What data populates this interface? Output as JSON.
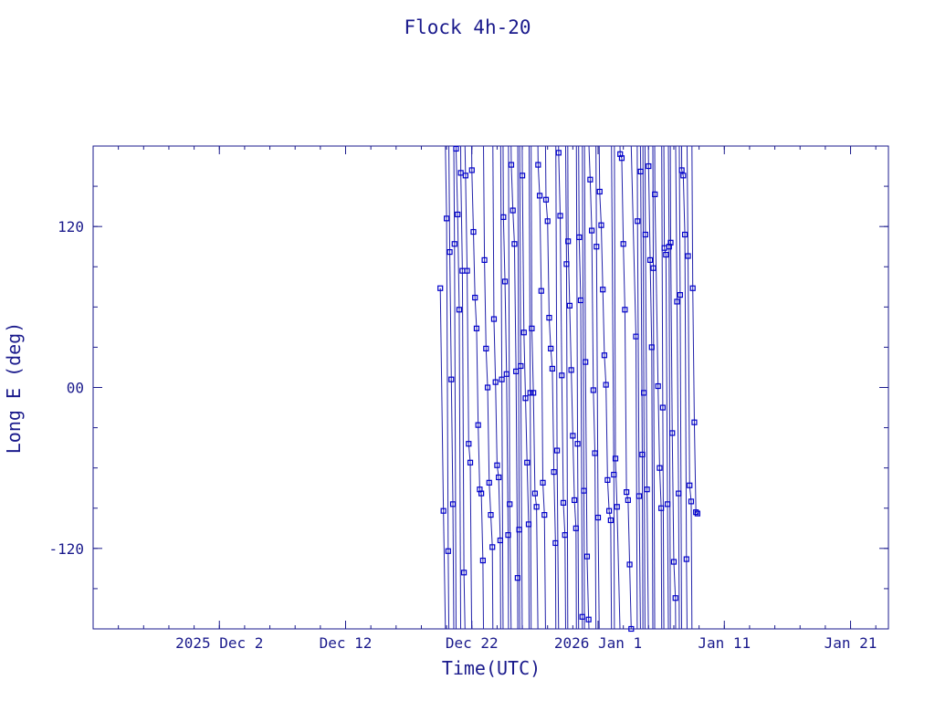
{
  "chart_data": {
    "type": "scatter",
    "title": "Flock 4h-20",
    "xlabel": "Time(UTC)",
    "ylabel": "Long E (deg)",
    "xlim": [
      "2025-11-22",
      "2026-01-24"
    ],
    "ylim": [
      -180,
      180
    ],
    "x_ticks": [
      {
        "date": "2025-12-02",
        "label": "2025 Dec  2"
      },
      {
        "date": "2025-12-12",
        "label": "Dec 12"
      },
      {
        "date": "2025-12-22",
        "label": "Dec 22"
      },
      {
        "date": "2026-01-01",
        "label": "2026 Jan  1"
      },
      {
        "date": "2026-01-11",
        "label": "Jan 11"
      },
      {
        "date": "2026-01-21",
        "label": "Jan 21"
      }
    ],
    "y_ticks": [
      {
        "value": 120,
        "label": "120"
      },
      {
        "value": 0,
        "label": "00"
      },
      {
        "value": -120,
        "label": "-120"
      }
    ],
    "series": [
      {
        "marker": "square",
        "color": "#0000cc",
        "points": [
          {
            "x": "2025-12-19T12:00",
            "y": 74
          },
          {
            "x": "2025-12-19T18:00",
            "y": -92
          },
          {
            "x": "2025-12-20T00:00",
            "y": 126
          },
          {
            "x": "2025-12-20T03:00",
            "y": -122
          },
          {
            "x": "2025-12-20T06:00",
            "y": 101
          },
          {
            "x": "2025-12-20T09:00",
            "y": 6
          },
          {
            "x": "2025-12-20T12:00",
            "y": -87
          },
          {
            "x": "2025-12-20T15:00",
            "y": 107
          },
          {
            "x": "2025-12-20T18:00",
            "y": 178
          },
          {
            "x": "2025-12-20T21:00",
            "y": 129
          },
          {
            "x": "2025-12-21T00:00",
            "y": 58
          },
          {
            "x": "2025-12-21T03:00",
            "y": 160
          },
          {
            "x": "2025-12-21T06:00",
            "y": 87
          },
          {
            "x": "2025-12-21T09:00",
            "y": -138
          },
          {
            "x": "2025-12-21T12:00",
            "y": 158
          },
          {
            "x": "2025-12-21T15:00",
            "y": 87
          },
          {
            "x": "2025-12-21T18:00",
            "y": -42
          },
          {
            "x": "2025-12-21T21:00",
            "y": -56
          },
          {
            "x": "2025-12-22T00:00",
            "y": 162
          },
          {
            "x": "2025-12-22T03:00",
            "y": 116
          },
          {
            "x": "2025-12-22T06:00",
            "y": 67
          },
          {
            "x": "2025-12-22T09:00",
            "y": 44
          },
          {
            "x": "2025-12-22T12:00",
            "y": -28
          },
          {
            "x": "2025-12-22T15:00",
            "y": -76
          },
          {
            "x": "2025-12-22T18:00",
            "y": -79
          },
          {
            "x": "2025-12-22T21:00",
            "y": -129
          },
          {
            "x": "2025-12-23T00:00",
            "y": 95
          },
          {
            "x": "2025-12-23T03:00",
            "y": 29
          },
          {
            "x": "2025-12-23T06:00",
            "y": 0
          },
          {
            "x": "2025-12-23T09:00",
            "y": -71
          },
          {
            "x": "2025-12-23T12:00",
            "y": -95
          },
          {
            "x": "2025-12-23T15:00",
            "y": -119
          },
          {
            "x": "2025-12-23T18:00",
            "y": 51
          },
          {
            "x": "2025-12-23T21:00",
            "y": 4
          },
          {
            "x": "2025-12-24T00:00",
            "y": -58
          },
          {
            "x": "2025-12-24T03:00",
            "y": -67
          },
          {
            "x": "2025-12-24T06:00",
            "y": -114
          },
          {
            "x": "2025-12-24T09:00",
            "y": 6
          },
          {
            "x": "2025-12-24T12:00",
            "y": 127
          },
          {
            "x": "2025-12-24T15:00",
            "y": 79
          },
          {
            "x": "2025-12-24T18:00",
            "y": 10
          },
          {
            "x": "2025-12-24T21:00",
            "y": -110
          },
          {
            "x": "2025-12-25T00:00",
            "y": -87
          },
          {
            "x": "2025-12-25T03:00",
            "y": 166
          },
          {
            "x": "2025-12-25T06:00",
            "y": 132
          },
          {
            "x": "2025-12-25T09:00",
            "y": 107
          },
          {
            "x": "2025-12-25T12:00",
            "y": 12
          },
          {
            "x": "2025-12-25T15:00",
            "y": -142
          },
          {
            "x": "2025-12-25T18:00",
            "y": -106
          },
          {
            "x": "2025-12-25T21:00",
            "y": 16
          },
          {
            "x": "2025-12-26T00:00",
            "y": 158
          },
          {
            "x": "2025-12-26T03:00",
            "y": 41
          },
          {
            "x": "2025-12-26T06:00",
            "y": -8
          },
          {
            "x": "2025-12-26T09:00",
            "y": -56
          },
          {
            "x": "2025-12-26T12:00",
            "y": -102
          },
          {
            "x": "2025-12-26T15:00",
            "y": -4
          },
          {
            "x": "2025-12-26T18:00",
            "y": 44
          },
          {
            "x": "2025-12-26T21:00",
            "y": -4
          },
          {
            "x": "2025-12-27T00:00",
            "y": -79
          },
          {
            "x": "2025-12-27T03:00",
            "y": -89
          },
          {
            "x": "2025-12-27T06:00",
            "y": 166
          },
          {
            "x": "2025-12-27T09:00",
            "y": 143
          },
          {
            "x": "2025-12-27T12:00",
            "y": 72
          },
          {
            "x": "2025-12-27T15:00",
            "y": -71
          },
          {
            "x": "2025-12-27T18:00",
            "y": -95
          },
          {
            "x": "2025-12-27T21:00",
            "y": 140
          },
          {
            "x": "2025-12-28T00:00",
            "y": 124
          },
          {
            "x": "2025-12-28T03:00",
            "y": 52
          },
          {
            "x": "2025-12-28T06:00",
            "y": 29
          },
          {
            "x": "2025-12-28T09:00",
            "y": 14
          },
          {
            "x": "2025-12-28T12:00",
            "y": -63
          },
          {
            "x": "2025-12-28T15:00",
            "y": -116
          },
          {
            "x": "2025-12-28T18:00",
            "y": -47
          },
          {
            "x": "2025-12-28T21:00",
            "y": 175
          },
          {
            "x": "2025-12-29T00:00",
            "y": 128
          },
          {
            "x": "2025-12-29T03:00",
            "y": 9
          },
          {
            "x": "2025-12-29T06:00",
            "y": -86
          },
          {
            "x": "2025-12-29T09:00",
            "y": -110
          },
          {
            "x": "2025-12-29T12:00",
            "y": 92
          },
          {
            "x": "2025-12-29T15:00",
            "y": 109
          },
          {
            "x": "2025-12-29T18:00",
            "y": 61
          },
          {
            "x": "2025-12-29T21:00",
            "y": 13
          },
          {
            "x": "2025-12-30T00:00",
            "y": -36
          },
          {
            "x": "2025-12-30T03:00",
            "y": -84
          },
          {
            "x": "2025-12-30T06:00",
            "y": -105
          },
          {
            "x": "2025-12-30T09:00",
            "y": -42
          },
          {
            "x": "2025-12-30T12:00",
            "y": 112
          },
          {
            "x": "2025-12-30T15:00",
            "y": 65
          },
          {
            "x": "2025-12-30T18:00",
            "y": -171
          },
          {
            "x": "2025-12-30T21:00",
            "y": -77
          },
          {
            "x": "2025-12-31T00:00",
            "y": 19
          },
          {
            "x": "2025-12-31T03:00",
            "y": -126
          },
          {
            "x": "2025-12-31T06:00",
            "y": -173
          },
          {
            "x": "2025-12-31T09:00",
            "y": 155
          },
          {
            "x": "2025-12-31T12:00",
            "y": 117
          },
          {
            "x": "2025-12-31T15:00",
            "y": -2
          },
          {
            "x": "2025-12-31T18:00",
            "y": -49
          },
          {
            "x": "2025-12-31T21:00",
            "y": 105
          },
          {
            "x": "2026-01-01T00:00",
            "y": -97
          },
          {
            "x": "2026-01-01T03:00",
            "y": 146
          },
          {
            "x": "2026-01-01T06:00",
            "y": 121
          },
          {
            "x": "2026-01-01T09:00",
            "y": 73
          },
          {
            "x": "2026-01-01T12:00",
            "y": 24
          },
          {
            "x": "2026-01-01T15:00",
            "y": 2
          },
          {
            "x": "2026-01-01T18:00",
            "y": -69
          },
          {
            "x": "2026-01-01T21:00",
            "y": -92
          },
          {
            "x": "2026-01-02T00:00",
            "y": -99
          },
          {
            "x": "2026-01-02T06:00",
            "y": -65
          },
          {
            "x": "2026-01-02T09:00",
            "y": -53
          },
          {
            "x": "2026-01-02T12:00",
            "y": -89
          },
          {
            "x": "2026-01-02T18:00",
            "y": 174
          },
          {
            "x": "2026-01-02T21:00",
            "y": 171
          },
          {
            "x": "2026-01-03T00:00",
            "y": 107
          },
          {
            "x": "2026-01-03T03:00",
            "y": 58
          },
          {
            "x": "2026-01-03T06:00",
            "y": -78
          },
          {
            "x": "2026-01-03T09:00",
            "y": -84
          },
          {
            "x": "2026-01-03T12:00",
            "y": -132
          },
          {
            "x": "2026-01-03T15:00",
            "y": -180
          },
          {
            "x": "2026-01-04T00:00",
            "y": 38
          },
          {
            "x": "2026-01-04T03:00",
            "y": 124
          },
          {
            "x": "2026-01-04T06:00",
            "y": -81
          },
          {
            "x": "2026-01-04T09:00",
            "y": 161
          },
          {
            "x": "2026-01-04T12:00",
            "y": -50
          },
          {
            "x": "2026-01-04T15:00",
            "y": -4
          },
          {
            "x": "2026-01-04T18:00",
            "y": 114
          },
          {
            "x": "2026-01-04T21:00",
            "y": -76
          },
          {
            "x": "2026-01-05T00:00",
            "y": 165
          },
          {
            "x": "2026-01-05T03:00",
            "y": 95
          },
          {
            "x": "2026-01-05T06:00",
            "y": 30
          },
          {
            "x": "2026-01-05T09:00",
            "y": 89
          },
          {
            "x": "2026-01-05T12:00",
            "y": 144
          },
          {
            "x": "2026-01-05T18:00",
            "y": 1
          },
          {
            "x": "2026-01-05T21:00",
            "y": -60
          },
          {
            "x": "2026-01-06T00:00",
            "y": -90
          },
          {
            "x": "2026-01-06T03:00",
            "y": -15
          },
          {
            "x": "2026-01-06T06:00",
            "y": 104
          },
          {
            "x": "2026-01-06T09:00",
            "y": 99
          },
          {
            "x": "2026-01-06T12:00",
            "y": -87
          },
          {
            "x": "2026-01-06T15:00",
            "y": 105
          },
          {
            "x": "2026-01-06T18:00",
            "y": 108
          },
          {
            "x": "2026-01-06T21:00",
            "y": -34
          },
          {
            "x": "2026-01-07T00:00",
            "y": -130
          },
          {
            "x": "2026-01-07T03:00",
            "y": -157
          },
          {
            "x": "2026-01-07T06:00",
            "y": 64
          },
          {
            "x": "2026-01-07T09:00",
            "y": -79
          },
          {
            "x": "2026-01-07T12:00",
            "y": 69
          },
          {
            "x": "2026-01-07T15:00",
            "y": 162
          },
          {
            "x": "2026-01-07T18:00",
            "y": 158
          },
          {
            "x": "2026-01-07T21:00",
            "y": 114
          },
          {
            "x": "2026-01-08T00:00",
            "y": -128
          },
          {
            "x": "2026-01-08T03:00",
            "y": 98
          },
          {
            "x": "2026-01-08T06:00",
            "y": -73
          },
          {
            "x": "2026-01-08T09:00",
            "y": -85
          },
          {
            "x": "2026-01-08T12:00",
            "y": 74
          },
          {
            "x": "2026-01-08T15:00",
            "y": -26
          },
          {
            "x": "2026-01-08T18:00",
            "y": -93
          },
          {
            "x": "2026-01-08T21:00",
            "y": -94
          }
        ]
      }
    ]
  }
}
